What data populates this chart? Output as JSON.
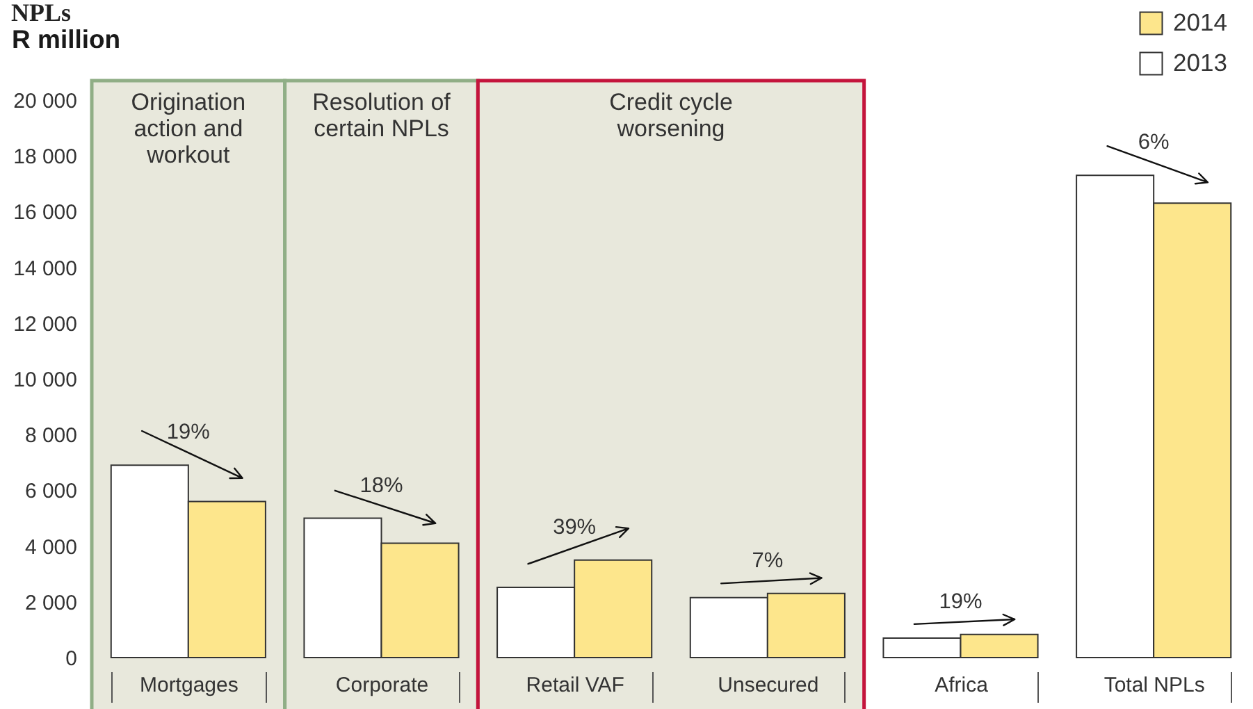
{
  "chart_data": {
    "type": "bar",
    "title": "NPLs",
    "ylabel": "R million",
    "categories": [
      "Mortgages",
      "Corporate",
      "Retail VAF",
      "Unsecured",
      "Africa",
      "Total NPLs"
    ],
    "series": [
      {
        "name": "2013",
        "color": "#ffffff",
        "values": [
          6900,
          5000,
          2520,
          2150,
          700,
          17300
        ]
      },
      {
        "name": "2014",
        "color": "#fde68c",
        "values": [
          5600,
          4100,
          3500,
          2300,
          830,
          16300
        ]
      }
    ],
    "ylim": [
      0,
      20000
    ],
    "yticks": [
      0,
      {
        "value": 2000,
        "label": "2 000"
      },
      {
        "value": 4000,
        "label": "4 000"
      },
      {
        "value": 6000,
        "label": "6 000"
      },
      {
        "value": 8000,
        "label": "8 000"
      },
      {
        "value": 10000,
        "label": "10 000"
      },
      {
        "value": 12000,
        "label": "12 000"
      },
      {
        "value": 14000,
        "label": "14 000"
      },
      {
        "value": 16000,
        "label": "16 000"
      },
      {
        "value": 18000,
        "label": "18 000"
      },
      {
        "value": 20000,
        "label": "20 000"
      }
    ],
    "legend": "top right",
    "bands": [
      {
        "axis": "x",
        "from": "Mortgages",
        "to": "Mortgages",
        "label": "Origination\naction and\nworkout",
        "color": "#e8e8dc"
      },
      {
        "axis": "x",
        "from": "Corporate",
        "to": "Corporate",
        "label": "Resolution of\ncertain NPLs",
        "color": "#e8e8dc"
      },
      {
        "axis": "x",
        "from": "Retail VAF",
        "to": "Unsecured",
        "label": "Credit cycle\nworsening",
        "color": "#e8e8dc"
      }
    ],
    "annotations": [
      "19%",
      "18%",
      "39%",
      "7%",
      "19%",
      "6%"
    ]
  }
}
